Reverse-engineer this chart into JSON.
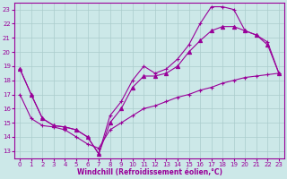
{
  "xlabel": "Windchill (Refroidissement éolien,°C)",
  "bg_color": "#cce8e8",
  "line_color": "#990099",
  "grid_color": "#aacccc",
  "xlim": [
    -0.5,
    23.5
  ],
  "ylim": [
    12.5,
    23.5
  ],
  "yticks": [
    13,
    14,
    15,
    16,
    17,
    18,
    19,
    20,
    21,
    22,
    23
  ],
  "xticks": [
    0,
    1,
    2,
    3,
    4,
    5,
    6,
    7,
    8,
    9,
    10,
    11,
    12,
    13,
    14,
    15,
    16,
    17,
    18,
    19,
    20,
    21,
    22,
    23
  ],
  "line1_x": [
    0,
    1,
    2,
    3,
    4,
    5,
    6,
    7,
    8,
    9,
    10,
    11,
    12,
    13,
    14,
    15,
    16,
    17,
    18,
    19,
    20,
    21,
    22,
    23
  ],
  "line1_y": [
    18.8,
    17.0,
    15.3,
    14.8,
    14.7,
    14.5,
    14.0,
    12.8,
    15.5,
    16.5,
    18.0,
    19.0,
    18.5,
    18.8,
    19.5,
    20.5,
    22.0,
    23.2,
    23.2,
    23.0,
    21.5,
    21.2,
    20.7,
    18.5
  ],
  "line1_marker": "+",
  "line2_x": [
    0,
    1,
    2,
    3,
    4,
    5,
    6,
    7,
    8,
    9,
    10,
    11,
    12,
    13,
    14,
    15,
    16,
    17,
    18,
    19,
    20,
    21,
    22,
    23
  ],
  "line2_y": [
    18.8,
    17.0,
    15.3,
    14.8,
    14.7,
    14.5,
    14.0,
    12.8,
    15.0,
    16.0,
    17.5,
    18.3,
    18.3,
    18.5,
    19.0,
    20.0,
    20.8,
    21.5,
    21.8,
    21.8,
    21.5,
    21.2,
    20.5,
    18.5
  ],
  "line2_marker": "^",
  "line3_x": [
    0,
    1,
    2,
    3,
    4,
    5,
    6,
    7,
    8,
    9,
    10,
    11,
    12,
    13,
    14,
    15,
    16,
    17,
    18,
    19,
    20,
    21,
    22,
    23
  ],
  "line3_y": [
    17.0,
    15.3,
    14.8,
    14.7,
    14.5,
    14.0,
    13.5,
    13.2,
    14.5,
    15.0,
    15.5,
    16.0,
    16.2,
    16.5,
    16.8,
    17.0,
    17.3,
    17.5,
    17.8,
    18.0,
    18.2,
    18.3,
    18.4,
    18.5
  ],
  "line3_marker": "+"
}
